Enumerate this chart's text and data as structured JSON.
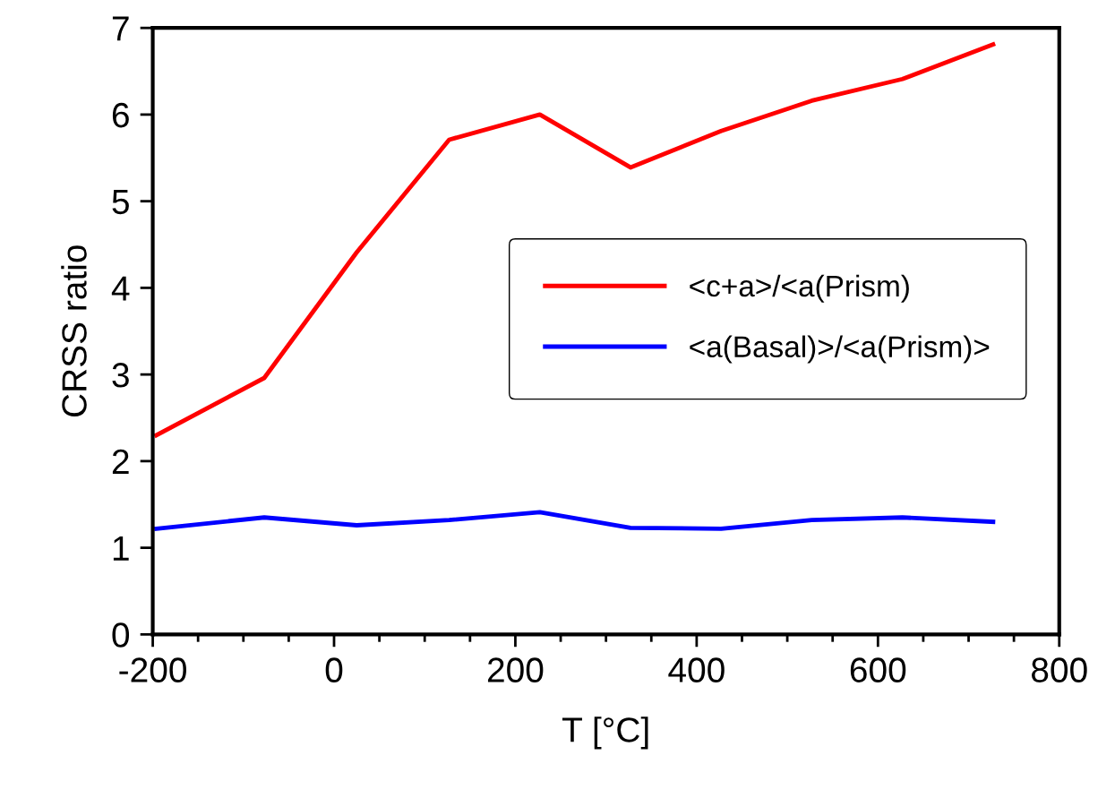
{
  "chart_data": {
    "type": "line",
    "xlabel": "T [°C]",
    "ylabel": "CRSS ratio",
    "x": [
      -196,
      -77,
      25,
      127,
      227,
      327,
      427,
      527,
      627,
      727
    ],
    "series": [
      {
        "name": "<c+a>/<a(Prism)",
        "color": "#ff0000",
        "values": [
          2.3,
          2.96,
          4.41,
          5.71,
          6.0,
          5.39,
          5.81,
          6.16,
          6.41,
          6.81
        ]
      },
      {
        "name": "<a(Basal)>/<a(Prism)>",
        "color": "#0000ff",
        "values": [
          1.22,
          1.35,
          1.26,
          1.32,
          1.41,
          1.23,
          1.22,
          1.32,
          1.35,
          1.3
        ]
      }
    ],
    "xlim": [
      -200,
      800
    ],
    "xticks": [
      -200,
      0,
      200,
      400,
      600,
      800
    ],
    "ylim": [
      0,
      7
    ],
    "yticks": [
      0,
      1,
      2,
      3,
      4,
      5,
      6,
      7
    ],
    "grid": false,
    "legend": "right",
    "marker": "none",
    "line_style": "solid"
  }
}
